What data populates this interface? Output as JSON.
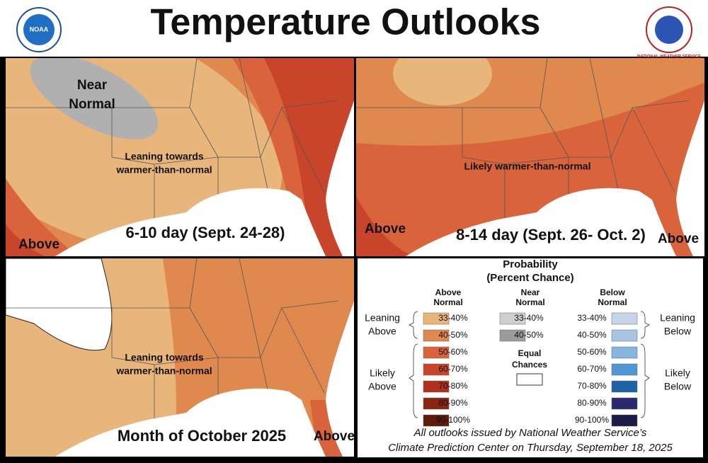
{
  "header": {
    "title": "Temperature Outlooks",
    "logos": [
      "NOAA",
      "NATIONAL WEATHER SERVICE"
    ]
  },
  "panels": [
    {
      "caption": "6-10 day (Sept. 24-28)",
      "labels": [
        {
          "lines": [
            "Near",
            "Normal"
          ]
        },
        {
          "lines": [
            "Leaning towards",
            "warmer-than-normal"
          ]
        },
        {
          "lines": [
            "Above"
          ]
        }
      ]
    },
    {
      "caption": "8-14 day (Sept. 26- Oct. 2)",
      "labels": [
        {
          "lines": [
            "Likely warmer-than-normal"
          ]
        },
        {
          "lines": [
            "Above"
          ]
        },
        {
          "lines": [
            "Above"
          ]
        }
      ]
    },
    {
      "caption": "Month of October 2025",
      "labels": [
        {
          "lines": [
            "Leaning towards",
            "warmer-than-normal"
          ]
        },
        {
          "lines": [
            "Above"
          ]
        }
      ]
    }
  ],
  "legend": {
    "title": [
      "Probability",
      "(Percent Chance)"
    ],
    "columns": [
      {
        "heading": [
          "Above",
          "Normal"
        ],
        "items": [
          {
            "range": "33-40%",
            "color": "#e8b57a"
          },
          {
            "range": "40-50%",
            "color": "#e0894f"
          },
          {
            "range": "50-60%",
            "color": "#d9643c"
          },
          {
            "range": "60-70%",
            "color": "#c8442b"
          },
          {
            "range": "70-80%",
            "color": "#b0301f"
          },
          {
            "range": "80-90%",
            "color": "#8a2413"
          },
          {
            "range": "90-100%",
            "color": "#5e1a0b"
          }
        ]
      },
      {
        "heading": [
          "Near",
          "Normal"
        ],
        "items": [
          {
            "range": "33-40%",
            "color": "#cfcfcf"
          },
          {
            "range": "40-50%",
            "color": "#9b9b9b"
          }
        ]
      },
      {
        "heading": [
          "Below",
          "Normal"
        ],
        "items": [
          {
            "range": "33-40%",
            "color": "#c6d3e8"
          },
          {
            "range": "40-50%",
            "color": "#a8c4e1"
          },
          {
            "range": "50-60%",
            "color": "#86b5e0"
          },
          {
            "range": "60-70%",
            "color": "#4f97d4"
          },
          {
            "range": "70-80%",
            "color": "#1f63a6"
          },
          {
            "range": "80-90%",
            "color": "#2a2a6e"
          },
          {
            "range": "90-100%",
            "color": "#1b1a48"
          }
        ]
      }
    ],
    "groups": [
      {
        "lines": [
          "Leaning",
          "Above"
        ]
      },
      {
        "lines": [
          "Likely",
          "Above"
        ]
      },
      {
        "lines": [
          "Leaning",
          "Below"
        ]
      },
      {
        "lines": [
          "Likely",
          "Below"
        ]
      }
    ],
    "equal_chances": [
      "Equal",
      "Chances"
    ]
  },
  "footer": [
    "All outlooks issued by National Weather Service’s",
    "Climate Prediction Center on Thursday, September 18, 2025"
  ]
}
